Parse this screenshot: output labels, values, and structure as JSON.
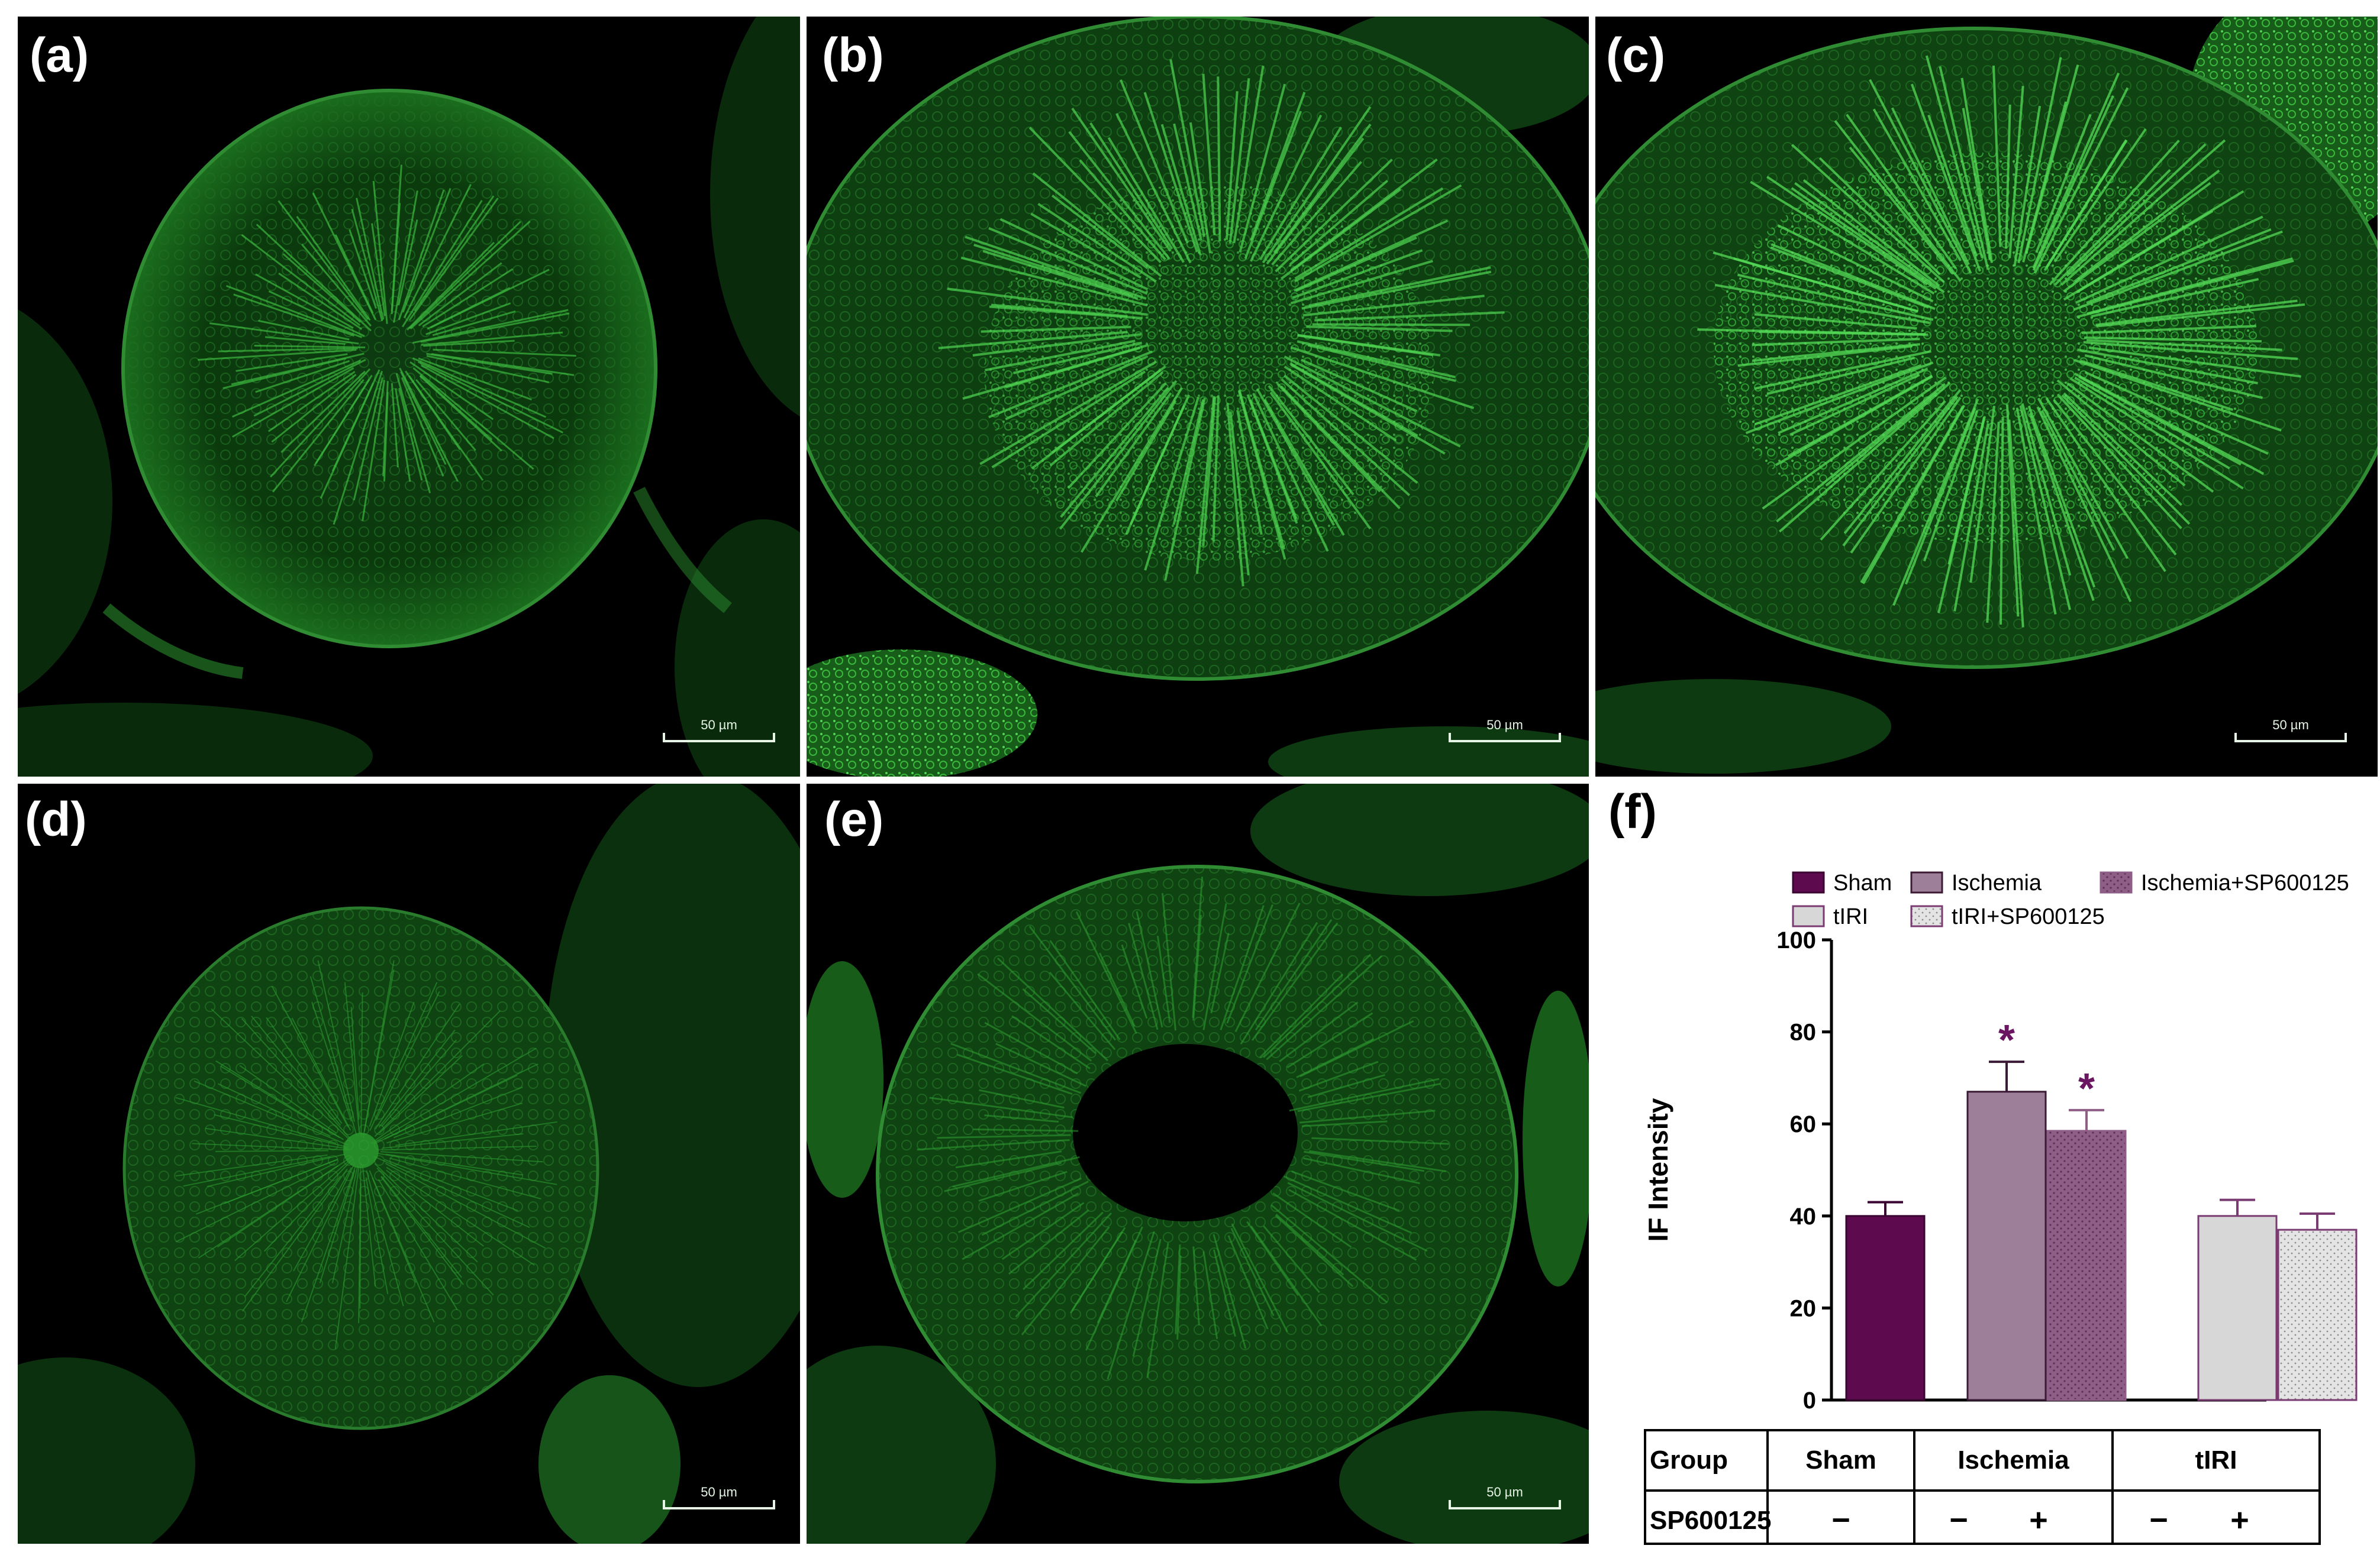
{
  "panels": [
    {
      "label": "(a)",
      "scale": "50 µm"
    },
    {
      "label": "(b)",
      "scale": "50 µm"
    },
    {
      "label": "(c)",
      "scale": "50 µm"
    },
    {
      "label": "(d)",
      "scale": "50 µm"
    },
    {
      "label": "(e)",
      "scale": "50 µm"
    }
  ],
  "chart_panel_label": "(f)",
  "colors": {
    "background": "#000000",
    "fluorescence": "#39d33b",
    "sham": "#5e0a4f",
    "ischemia": "#9e7f99",
    "ischemia_sp": "#8e5e86",
    "tiri": "#d7d7d7",
    "tiri_sp": "#e4e4e4",
    "significance": "#6a1660"
  },
  "chart_data": {
    "type": "bar",
    "ylabel": "IF Intensity",
    "ylim": [
      0,
      100
    ],
    "yticks": [
      0,
      20,
      40,
      60,
      80,
      100
    ],
    "legend_placement": "top",
    "series": [
      {
        "name": "Sham",
        "value": 40,
        "error": 3,
        "significant": false
      },
      {
        "name": "Ischemia",
        "value": 67,
        "error": 6.5,
        "significant": true
      },
      {
        "name": "Ischemia+SP600125",
        "value": 58.5,
        "error": 4.5,
        "significant": true
      },
      {
        "name": "tIRI",
        "value": 40,
        "error": 3.5,
        "significant": false
      },
      {
        "name": "tIRI+SP600125",
        "value": 37,
        "error": 3.5,
        "significant": false
      }
    ],
    "significance_marker": "*",
    "table": {
      "row_labels": [
        "Group",
        "SP600125"
      ],
      "groups": [
        "Sham",
        "Ischemia",
        "tIRI"
      ],
      "sp600125": [
        "−",
        "−",
        "+",
        "−",
        "+"
      ]
    }
  }
}
